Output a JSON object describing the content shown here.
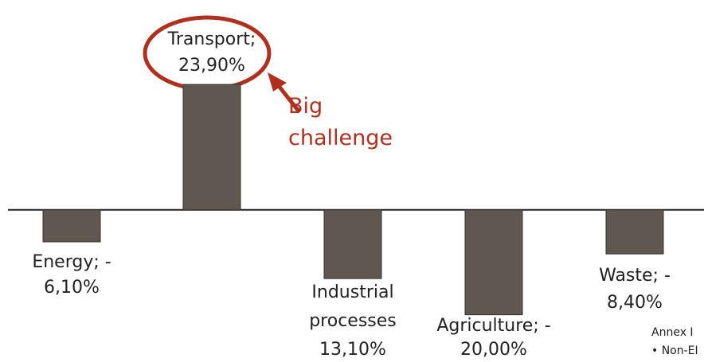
{
  "chart_data": {
    "type": "bar",
    "categories": [
      "Energy; -",
      "Transport;",
      "Industrial processes",
      "Agriculture; -",
      "Waste; -"
    ],
    "values": [
      -6.1,
      23.9,
      -13.1,
      -20.0,
      -8.4
    ],
    "value_labels": [
      "6,10%",
      "23,90%",
      "13,10%",
      "20,00%",
      "8,40%"
    ],
    "color": "#5f5850",
    "ylim": [
      -29,
      40
    ],
    "annotations": [
      "Big challenge",
      "Annex I",
      "• Non-EI"
    ]
  }
}
